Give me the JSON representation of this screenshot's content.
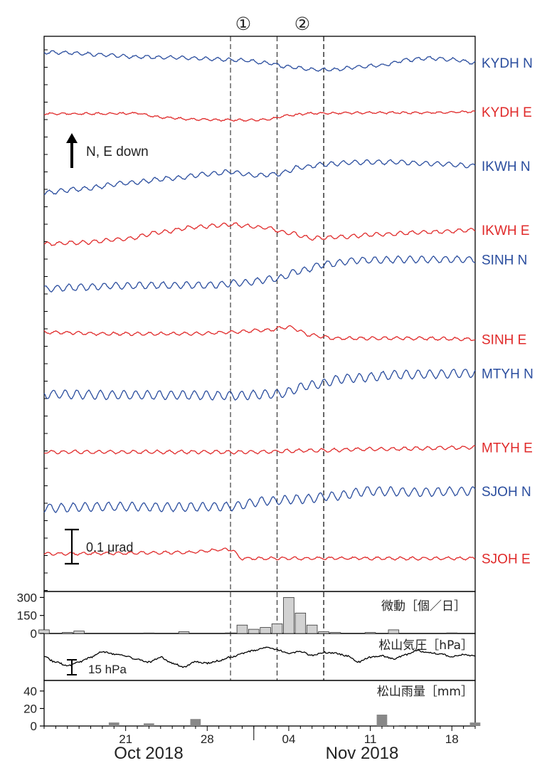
{
  "chart_data": [
    {
      "type": "line",
      "panel": "tilt",
      "x_range": [
        "2018-10-14",
        "2018-11-20"
      ],
      "events": [
        {
          "label": "①",
          "date": "2018-10-30"
        },
        {
          "label": "②",
          "date": "2018-11-07"
        }
      ],
      "extra_vlines": [
        "2018-11-03"
      ],
      "orientation_note": "N, E down",
      "scale_bar_label": "0.1 μrad",
      "series": [
        {
          "name": "KYDH N",
          "color": "#2a4d9e",
          "points": [
            [
              "2018-10-14",
              0.95
            ],
            [
              "2018-10-16",
              0.92
            ],
            [
              "2018-10-19",
              0.82
            ],
            [
              "2018-10-22",
              0.72
            ],
            [
              "2018-10-25",
              0.68
            ],
            [
              "2018-10-28",
              0.62
            ],
            [
              "2018-10-31",
              0.55
            ],
            [
              "2018-11-02",
              0.42
            ],
            [
              "2018-11-04",
              0.22
            ],
            [
              "2018-11-06",
              0.08
            ],
            [
              "2018-11-08",
              0.08
            ],
            [
              "2018-11-10",
              0.22
            ],
            [
              "2018-11-12",
              0.3
            ],
            [
              "2018-11-14",
              0.55
            ],
            [
              "2018-11-16",
              0.65
            ],
            [
              "2018-11-18",
              0.58
            ],
            [
              "2018-11-20",
              0.42
            ]
          ]
        },
        {
          "name": "KYDH E",
          "color": "#e02a2a",
          "points": [
            [
              "2018-10-14",
              0.9
            ],
            [
              "2018-10-19",
              0.9
            ],
            [
              "2018-10-22",
              0.92
            ],
            [
              "2018-10-24",
              0.72
            ],
            [
              "2018-10-27",
              0.62
            ],
            [
              "2018-10-30",
              0.58
            ],
            [
              "2018-11-02",
              0.6
            ],
            [
              "2018-11-04",
              0.82
            ],
            [
              "2018-11-06",
              0.92
            ],
            [
              "2018-11-10",
              0.95
            ],
            [
              "2018-11-15",
              0.95
            ],
            [
              "2018-11-20",
              1.0
            ]
          ]
        },
        {
          "name": "IKWH N",
          "color": "#2a4d9e",
          "points": [
            [
              "2018-10-14",
              0.1
            ],
            [
              "2018-10-17",
              0.22
            ],
            [
              "2018-10-21",
              0.42
            ],
            [
              "2018-10-25",
              0.58
            ],
            [
              "2018-10-28",
              0.72
            ],
            [
              "2018-10-30",
              0.8
            ],
            [
              "2018-11-01",
              0.68
            ],
            [
              "2018-11-03",
              0.72
            ],
            [
              "2018-11-05",
              0.95
            ],
            [
              "2018-11-07",
              1.05
            ],
            [
              "2018-11-10",
              1.12
            ],
            [
              "2018-11-13",
              1.12
            ],
            [
              "2018-11-16",
              1.08
            ],
            [
              "2018-11-20",
              1.0
            ]
          ]
        },
        {
          "name": "IKWH E",
          "color": "#e02a2a",
          "points": [
            [
              "2018-10-14",
              0.05
            ],
            [
              "2018-10-17",
              0.1
            ],
            [
              "2018-10-21",
              0.22
            ],
            [
              "2018-10-24",
              0.45
            ],
            [
              "2018-10-27",
              0.62
            ],
            [
              "2018-10-30",
              0.7
            ],
            [
              "2018-11-02",
              0.6
            ],
            [
              "2018-11-04",
              0.42
            ],
            [
              "2018-11-06",
              0.25
            ],
            [
              "2018-11-08",
              0.28
            ],
            [
              "2018-11-12",
              0.38
            ],
            [
              "2018-11-16",
              0.45
            ],
            [
              "2018-11-20",
              0.52
            ]
          ]
        },
        {
          "name": "SINH N",
          "color": "#2a4d9e",
          "points": [
            [
              "2018-10-14",
              0.1
            ],
            [
              "2018-10-17",
              0.15
            ],
            [
              "2018-10-20",
              0.2
            ],
            [
              "2018-10-24",
              0.22
            ],
            [
              "2018-10-28",
              0.22
            ],
            [
              "2018-10-31",
              0.3
            ],
            [
              "2018-11-03",
              0.45
            ],
            [
              "2018-11-05",
              0.7
            ],
            [
              "2018-11-07",
              0.92
            ],
            [
              "2018-11-10",
              1.05
            ],
            [
              "2018-11-14",
              1.08
            ],
            [
              "2018-11-20",
              1.08
            ]
          ]
        },
        {
          "name": "SINH E",
          "color": "#e02a2a",
          "points": [
            [
              "2018-10-14",
              0.55
            ],
            [
              "2018-10-20",
              0.5
            ],
            [
              "2018-10-26",
              0.5
            ],
            [
              "2018-10-30",
              0.55
            ],
            [
              "2018-11-02",
              0.62
            ],
            [
              "2018-11-04",
              0.72
            ],
            [
              "2018-11-06",
              0.45
            ],
            [
              "2018-11-08",
              0.35
            ],
            [
              "2018-11-14",
              0.35
            ],
            [
              "2018-11-20",
              0.32
            ]
          ]
        },
        {
          "name": "MTYH N",
          "color": "#2a4d9e",
          "points": [
            [
              "2018-10-14",
              0.15
            ],
            [
              "2018-10-20",
              0.12
            ],
            [
              "2018-10-26",
              0.12
            ],
            [
              "2018-10-30",
              0.1
            ],
            [
              "2018-11-03",
              0.15
            ],
            [
              "2018-11-06",
              0.45
            ],
            [
              "2018-11-09",
              0.68
            ],
            [
              "2018-11-14",
              0.8
            ],
            [
              "2018-11-20",
              0.85
            ]
          ]
        },
        {
          "name": "MTYH E",
          "color": "#e02a2a",
          "points": [
            [
              "2018-10-14",
              0.0
            ],
            [
              "2018-10-20",
              0.0
            ],
            [
              "2018-10-26",
              0.0
            ],
            [
              "2018-11-01",
              0.0
            ],
            [
              "2018-11-06",
              0.05
            ],
            [
              "2018-11-12",
              0.1
            ],
            [
              "2018-11-20",
              0.15
            ]
          ]
        },
        {
          "name": "SJOH N",
          "color": "#2a4d9e",
          "points": [
            [
              "2018-10-14",
              0.15
            ],
            [
              "2018-10-20",
              0.2
            ],
            [
              "2018-10-26",
              0.18
            ],
            [
              "2018-10-30",
              0.2
            ],
            [
              "2018-11-02",
              0.38
            ],
            [
              "2018-11-05",
              0.45
            ],
            [
              "2018-11-08",
              0.55
            ],
            [
              "2018-11-11",
              0.72
            ],
            [
              "2018-11-15",
              0.68
            ],
            [
              "2018-11-20",
              0.72
            ]
          ]
        },
        {
          "name": "SJOH E",
          "color": "#e02a2a",
          "points": [
            [
              "2018-10-14",
              0.4
            ],
            [
              "2018-10-20",
              0.42
            ],
            [
              "2018-10-26",
              0.45
            ],
            [
              "2018-10-30",
              0.55
            ],
            [
              "2018-10-31",
              0.25
            ],
            [
              "2018-11-03",
              0.25
            ],
            [
              "2018-11-10",
              0.25
            ],
            [
              "2018-11-20",
              0.25
            ]
          ]
        }
      ]
    },
    {
      "type": "bar",
      "panel": "tremor",
      "title": "微動［個／日］",
      "ylim": [
        0,
        320
      ],
      "yticks": [
        0,
        150,
        300
      ],
      "bar_color": "#d2d2d2",
      "dates": [
        "2018-10-14",
        "2018-10-16",
        "2018-10-17",
        "2018-10-23",
        "2018-10-26",
        "2018-10-30",
        "2018-10-31",
        "2018-11-01",
        "2018-11-02",
        "2018-11-03",
        "2018-11-04",
        "2018-11-05",
        "2018-11-06",
        "2018-11-07",
        "2018-11-08",
        "2018-11-11",
        "2018-11-13",
        "2018-11-18"
      ],
      "values": [
        30,
        8,
        20,
        4,
        15,
        5,
        70,
        35,
        50,
        80,
        300,
        170,
        70,
        15,
        8,
        8,
        30,
        5
      ]
    },
    {
      "type": "line",
      "panel": "pressure",
      "title": "松山気圧［hPa］",
      "scale_bar_label": "15 hPa",
      "points": [
        [
          "2018-10-14",
          0.55
        ],
        [
          "2018-10-15",
          0.35
        ],
        [
          "2018-10-16",
          0.2
        ],
        [
          "2018-10-17",
          0.35
        ],
        [
          "2018-10-18",
          0.55
        ],
        [
          "2018-10-19",
          0.78
        ],
        [
          "2018-10-20",
          0.68
        ],
        [
          "2018-10-21",
          0.6
        ],
        [
          "2018-10-22",
          0.45
        ],
        [
          "2018-10-23",
          0.35
        ],
        [
          "2018-10-24",
          0.55
        ],
        [
          "2018-10-25",
          0.3
        ],
        [
          "2018-10-26",
          0.15
        ],
        [
          "2018-10-27",
          0.35
        ],
        [
          "2018-10-28",
          0.3
        ],
        [
          "2018-10-29",
          0.4
        ],
        [
          "2018-10-30",
          0.55
        ],
        [
          "2018-10-31",
          0.7
        ],
        [
          "2018-11-01",
          0.82
        ],
        [
          "2018-11-02",
          0.95
        ],
        [
          "2018-11-03",
          0.85
        ],
        [
          "2018-11-04",
          0.7
        ],
        [
          "2018-11-05",
          0.78
        ],
        [
          "2018-11-06",
          0.62
        ],
        [
          "2018-11-07",
          0.75
        ],
        [
          "2018-11-08",
          0.72
        ],
        [
          "2018-11-09",
          0.6
        ],
        [
          "2018-11-10",
          0.35
        ],
        [
          "2018-11-11",
          0.55
        ],
        [
          "2018-11-12",
          0.6
        ],
        [
          "2018-11-13",
          0.48
        ],
        [
          "2018-11-14",
          0.65
        ],
        [
          "2018-11-15",
          0.82
        ],
        [
          "2018-11-16",
          0.75
        ],
        [
          "2018-11-17",
          0.68
        ],
        [
          "2018-11-18",
          0.58
        ],
        [
          "2018-11-19",
          0.65
        ],
        [
          "2018-11-20",
          0.6
        ]
      ]
    },
    {
      "type": "bar",
      "panel": "rain",
      "title": "松山雨量［mm］",
      "ylim": [
        0,
        48
      ],
      "yticks": [
        0,
        20,
        40
      ],
      "bar_color": "#888888",
      "dates": [
        "2018-10-20",
        "2018-10-23",
        "2018-10-27",
        "2018-11-12",
        "2018-11-13",
        "2018-11-20"
      ],
      "values": [
        4,
        3,
        8,
        13,
        1,
        4
      ]
    }
  ],
  "x_axis": {
    "tick_labels": [
      "21",
      "28",
      "04",
      "11",
      "18"
    ],
    "tick_dates": [
      "2018-10-21",
      "2018-10-28",
      "2018-11-04",
      "2018-11-11",
      "2018-11-18"
    ],
    "month_labels": [
      "Oct 2018",
      "Nov 2018"
    ]
  }
}
